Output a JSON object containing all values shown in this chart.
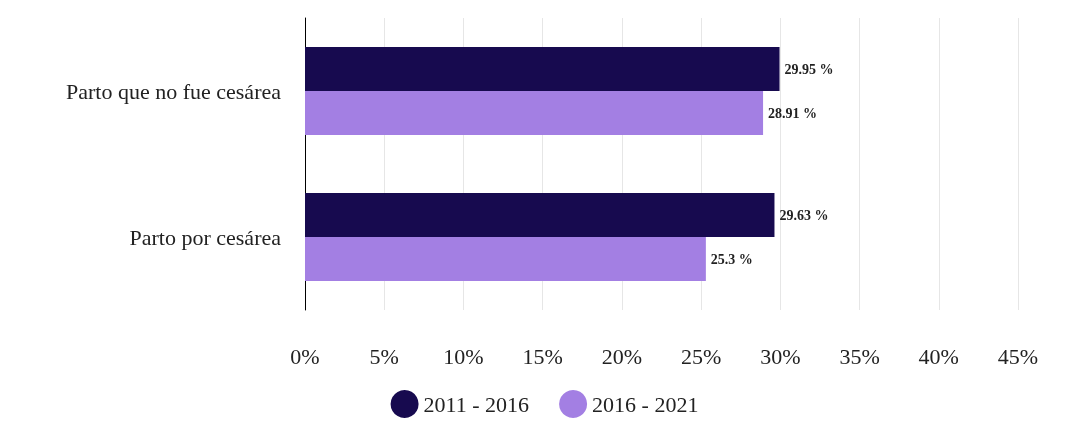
{
  "chart_data": {
    "type": "bar",
    "orientation": "horizontal",
    "categories": [
      "Parto que no fue cesárea",
      "Parto por cesárea"
    ],
    "series": [
      {
        "name": "2011 - 2016",
        "color": "#170a4f",
        "values": [
          29.95,
          29.63
        ],
        "value_labels": [
          "29.95 %",
          "29.63 %"
        ]
      },
      {
        "name": "2016 - 2021",
        "color": "#a37fe3",
        "values": [
          28.91,
          25.3
        ],
        "value_labels": [
          "28.91 %",
          "25.3 %"
        ]
      }
    ],
    "xlim": [
      0,
      45
    ],
    "xticks": [
      {
        "value": 0,
        "label": "0%"
      },
      {
        "value": 5,
        "label": "5%"
      },
      {
        "value": 10,
        "label": "10%"
      },
      {
        "value": 15,
        "label": "15%"
      },
      {
        "value": 20,
        "label": "20%"
      },
      {
        "value": 25,
        "label": "25%"
      },
      {
        "value": 30,
        "label": "30%"
      },
      {
        "value": 35,
        "label": "35%"
      },
      {
        "value": 40,
        "label": "40%"
      },
      {
        "value": 45,
        "label": "45%"
      }
    ],
    "grid": "x",
    "legend": "bottom"
  }
}
